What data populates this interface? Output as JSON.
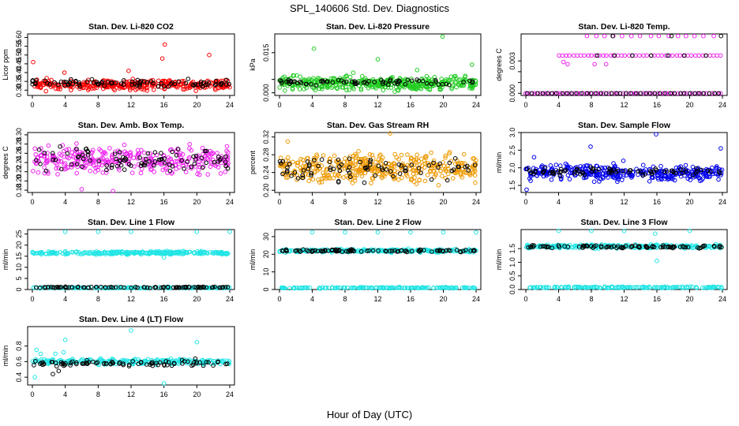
{
  "figure": {
    "title": "SPL_140606  Std. Dev. Diagnostics",
    "xlabel": "Hour of Day (UTC)"
  },
  "chart_data": [
    {
      "type": "scatter",
      "title": "Stan. Dev. Li-820 CO2",
      "ylabel": "Licor ppm",
      "xlim": [
        0,
        24
      ],
      "ylim": [
        0.27,
        0.62
      ],
      "xticks": [
        "0",
        "4",
        "8",
        "12",
        "16",
        "20",
        "24"
      ],
      "yticks": [
        {
          "v": 0.3,
          "t": "0.30"
        },
        {
          "v": 0.35,
          "t": "0.35"
        },
        {
          "v": 0.4,
          "t": "0.40"
        },
        {
          "v": 0.45,
          "t": "0.45"
        },
        {
          "v": 0.5,
          "t": "0.50"
        },
        {
          "v": 0.55,
          "t": "0.55"
        },
        {
          "v": 0.6,
          "t": "0.60"
        }
      ],
      "series": [
        {
          "color": "#ff0000",
          "kind": "band",
          "seed": 11,
          "n": 340,
          "center": 0.33,
          "spread": 0.04,
          "outliers": [
            [
              0.1,
              0.46
            ],
            [
              8.3,
              0.62
            ],
            [
              15.8,
              0.48
            ],
            [
              16.1,
              0.56
            ],
            [
              21.5,
              0.5
            ],
            [
              3.9,
              0.4
            ],
            [
              11.7,
              0.41
            ]
          ]
        },
        {
          "color": "#000000",
          "kind": "band",
          "seed": 12,
          "n": 90,
          "center": 0.34,
          "spread": 0.03,
          "outliers": []
        }
      ]
    },
    {
      "type": "scatter",
      "title": "Stan. Dev. Li-820 Pressure",
      "ylabel": "kPa",
      "xlim": [
        0,
        24
      ],
      "ylim": [
        -0.001,
        0.022
      ],
      "xticks": [
        "0",
        "4",
        "8",
        "12",
        "16",
        "20",
        "24"
      ],
      "yticks": [
        {
          "v": 0.0,
          "t": "0.000"
        },
        {
          "v": 0.005,
          "t": ""
        },
        {
          "v": 0.015,
          "t": "0.015"
        }
      ],
      "series": [
        {
          "color": "#22cc22",
          "kind": "band",
          "seed": 21,
          "n": 420,
          "center": 0.0035,
          "spread": 0.0035,
          "outliers": [
            [
              4.2,
              0.0165
            ],
            [
              12.0,
              0.0125
            ],
            [
              19.9,
              0.021
            ],
            [
              9.0,
              0.0075
            ],
            [
              16.8,
              0.0085
            ],
            [
              23.5,
              0.0105
            ],
            [
              0.6,
              0.006
            ]
          ]
        },
        {
          "color": "#000000",
          "kind": "band",
          "seed": 22,
          "n": 70,
          "center": 0.004,
          "spread": 0.0015,
          "outliers": []
        }
      ]
    },
    {
      "type": "scatter",
      "title": "Stan. Dev. Li-820 Temp.",
      "ylabel": "degrees C",
      "xlim": [
        0,
        24
      ],
      "ylim": [
        -0.0002,
        0.0055
      ],
      "xticks": [
        "0",
        "4",
        "8",
        "12",
        "16",
        "20",
        "24"
      ],
      "yticks": [
        {
          "v": 0.0,
          "t": "0.000"
        },
        {
          "v": 0.001,
          "t": ""
        },
        {
          "v": 0.002,
          "t": ""
        },
        {
          "v": 0.003,
          "t": "0.003"
        }
      ],
      "series": [
        {
          "color": "#ee22ee",
          "kind": "levels",
          "seed": 31,
          "rows": [
            {
              "y": 0.0,
              "from": 0,
              "to": 24,
              "step": 0.35
            },
            {
              "y": 0.0035,
              "from": 4,
              "to": 23.8,
              "step": 0.45
            },
            {
              "y": 0.0053,
              "from": 7.5,
              "to": 23.5,
              "step": 1.1
            }
          ],
          "outliers": [
            [
              8.4,
              0.0027
            ],
            [
              5.1,
              0.0027
            ],
            [
              4.6,
              0.0029
            ],
            [
              9.8,
              0.0027
            ]
          ]
        },
        {
          "color": "#000000",
          "kind": "levels",
          "seed": 32,
          "rows": [
            {
              "y": 0.0,
              "from": 0.2,
              "to": 23.8,
              "step": 0.6
            },
            {
              "y": 0.0035,
              "from": 8.6,
              "to": 23.8,
              "step": 2.2
            },
            {
              "y": 0.0053,
              "from": 11.2,
              "to": 23.2,
              "step": 6.0
            }
          ],
          "outliers": []
        }
      ]
    },
    {
      "type": "scatter",
      "title": "Stan. Dev. Amb. Box Temp.",
      "ylabel": "degrees C",
      "xlim": [
        0,
        24
      ],
      "ylim": [
        0.175,
        0.305
      ],
      "xticks": [
        "0",
        "4",
        "8",
        "12",
        "16",
        "20",
        "24"
      ],
      "yticks": [
        {
          "v": 0.18,
          "t": "0.18"
        },
        {
          "v": 0.2,
          "t": "0.20"
        },
        {
          "v": 0.22,
          "t": "0.22"
        },
        {
          "v": 0.24,
          "t": "0.24"
        },
        {
          "v": 0.26,
          "t": "0.26"
        },
        {
          "v": 0.28,
          "t": "0.28"
        },
        {
          "v": 0.3,
          "t": "0.30"
        }
      ],
      "series": [
        {
          "color": "#ee22ee",
          "kind": "band",
          "seed": 41,
          "n": 340,
          "center": 0.245,
          "spread": 0.04,
          "outliers": [
            [
              9.8,
              0.178
            ],
            [
              6.0,
              0.182
            ]
          ]
        },
        {
          "color": "#000000",
          "kind": "band",
          "seed": 42,
          "n": 90,
          "center": 0.245,
          "spread": 0.035,
          "outliers": []
        }
      ]
    },
    {
      "type": "scatter",
      "title": "Stan. Dev. Gas Stream RH",
      "ylabel": "percent",
      "xlim": [
        0,
        24
      ],
      "ylim": [
        0.195,
        0.33
      ],
      "xticks": [
        "0",
        "4",
        "8",
        "12",
        "16",
        "20",
        "24"
      ],
      "yticks": [
        {
          "v": 0.2,
          "t": "0.20"
        },
        {
          "v": 0.24,
          "t": "0.24"
        },
        {
          "v": 0.28,
          "t": "0.28"
        },
        {
          "v": 0.32,
          "t": "0.32"
        }
      ],
      "series": [
        {
          "color": "#ee9900",
          "kind": "band",
          "seed": 51,
          "n": 420,
          "center": 0.25,
          "spread": 0.045,
          "outliers": [
            [
              13.5,
              0.328
            ],
            [
              1.0,
              0.31
            ]
          ]
        },
        {
          "color": "#000000",
          "kind": "band",
          "seed": 52,
          "n": 80,
          "center": 0.25,
          "spread": 0.04,
          "outliers": []
        }
      ]
    },
    {
      "type": "scatter",
      "title": "Stan. Dev. Sample Flow",
      "ylabel": "ml/min",
      "xlim": [
        0,
        24
      ],
      "ylim": [
        1.3,
        3.0
      ],
      "xticks": [
        "0",
        "4",
        "8",
        "12",
        "16",
        "20",
        "24"
      ],
      "yticks": [
        {
          "v": 1.5,
          "t": "1.5"
        },
        {
          "v": 2.0,
          "t": "2.0"
        },
        {
          "v": 2.5,
          "t": "2.5"
        },
        {
          "v": 3.0,
          "t": "3.0"
        }
      ],
      "series": [
        {
          "color": "#0000ee",
          "kind": "band",
          "seed": 61,
          "n": 360,
          "center": 1.85,
          "spread": 0.3,
          "outliers": [
            [
              7.9,
              2.6
            ],
            [
              15.9,
              2.95
            ],
            [
              23.8,
              2.55
            ],
            [
              0.1,
              1.38
            ],
            [
              1.0,
              2.3
            ],
            [
              11.9,
              2.2
            ]
          ]
        },
        {
          "color": "#000000",
          "kind": "band",
          "seed": 62,
          "n": 80,
          "center": 1.9,
          "spread": 0.15,
          "outliers": []
        }
      ]
    },
    {
      "type": "scatter",
      "title": "Stan. Dev. Line 1 Flow",
      "ylabel": "ml/min",
      "xlim": [
        0,
        24
      ],
      "ylim": [
        0,
        27
      ],
      "xticks": [
        "0",
        "4",
        "8",
        "12",
        "16",
        "20",
        "24"
      ],
      "yticks": [
        {
          "v": 0,
          "t": "0"
        },
        {
          "v": 5,
          "t": "5"
        },
        {
          "v": 10,
          "t": "10"
        },
        {
          "v": 15,
          "t": "15"
        },
        {
          "v": 20,
          "t": "20"
        },
        {
          "v": 25,
          "t": "25"
        }
      ],
      "series": [
        {
          "color": "#22e5e5",
          "kind": "band",
          "seed": 71,
          "n": 260,
          "center": 16.5,
          "spread": 1.0,
          "outliers": [
            [
              4.0,
              26
            ],
            [
              8.0,
              26
            ],
            [
              12.0,
              26
            ],
            [
              16.0,
              14.5
            ],
            [
              20.0,
              26
            ],
            [
              24.0,
              26
            ]
          ]
        },
        {
          "color": "#22e5e5",
          "kind": "band",
          "seed": 73,
          "n": 160,
          "center": 0.8,
          "spread": 0.4,
          "outliers": []
        },
        {
          "color": "#000000",
          "kind": "band",
          "seed": 72,
          "n": 90,
          "center": 1.0,
          "spread": 0.4,
          "outliers": []
        }
      ]
    },
    {
      "type": "scatter",
      "title": "Stan. Dev. Line 2 Flow",
      "ylabel": "ml/min",
      "xlim": [
        0,
        24
      ],
      "ylim": [
        0,
        34
      ],
      "xticks": [
        "0",
        "4",
        "8",
        "12",
        "16",
        "20",
        "24"
      ],
      "yticks": [
        {
          "v": 0,
          "t": "0"
        },
        {
          "v": 10,
          "t": "10"
        },
        {
          "v": 20,
          "t": "20"
        },
        {
          "v": 30,
          "t": "30"
        }
      ],
      "series": [
        {
          "color": "#22e5e5",
          "kind": "band",
          "seed": 81,
          "n": 260,
          "center": 22,
          "spread": 1.4,
          "outliers": [
            [
              4.0,
              32.5
            ],
            [
              8.0,
              32.5
            ],
            [
              12.0,
              32.5
            ],
            [
              16.0,
              32.5
            ],
            [
              20.0,
              32.5
            ],
            [
              24.0,
              32.5
            ]
          ]
        },
        {
          "color": "#22e5e5",
          "kind": "band",
          "seed": 83,
          "n": 160,
          "center": 1.0,
          "spread": 0.5,
          "outliers": []
        },
        {
          "color": "#000000",
          "kind": "band",
          "seed": 82,
          "n": 90,
          "center": 22,
          "spread": 1.0,
          "outliers": []
        }
      ]
    },
    {
      "type": "scatter",
      "title": "Stan. Dev. Line 3 Flow",
      "ylabel": "ml/min",
      "xlim": [
        0,
        24
      ],
      "ylim": [
        0,
        2.2
      ],
      "xticks": [
        "0",
        "4",
        "8",
        "12",
        "16",
        "20",
        "24"
      ],
      "yticks": [
        {
          "v": 0.0,
          "t": "0.0"
        },
        {
          "v": 0.5,
          "t": "0.5"
        },
        {
          "v": 1.0,
          "t": "1.0"
        },
        {
          "v": 1.5,
          "t": "1.5"
        }
      ],
      "series": [
        {
          "color": "#22e5e5",
          "kind": "band",
          "seed": 91,
          "n": 260,
          "center": 1.58,
          "spread": 0.1,
          "outliers": [
            [
              4.0,
              2.15
            ],
            [
              8.0,
              2.15
            ],
            [
              12.0,
              2.15
            ],
            [
              16.0,
              1.05
            ],
            [
              20.0,
              2.15
            ],
            [
              15.8,
              2.05
            ]
          ]
        },
        {
          "color": "#22e5e5",
          "kind": "band",
          "seed": 93,
          "n": 160,
          "center": 0.08,
          "spread": 0.04,
          "outliers": []
        },
        {
          "color": "#000000",
          "kind": "band",
          "seed": 92,
          "n": 90,
          "center": 1.57,
          "spread": 0.08,
          "outliers": []
        }
      ]
    },
    {
      "type": "scatter",
      "title": "Stan. Dev. Line 4 (LT) Flow",
      "ylabel": "ml/min",
      "xlim": [
        0,
        24
      ],
      "ylim": [
        0.3,
        1.05
      ],
      "xticks": [
        "0",
        "4",
        "8",
        "12",
        "16",
        "20",
        "24"
      ],
      "yticks": [
        {
          "v": 0.4,
          "t": "0.4"
        },
        {
          "v": 0.6,
          "t": "0.6"
        },
        {
          "v": 0.8,
          "t": "0.8"
        }
      ],
      "series": [
        {
          "color": "#22e5e5",
          "kind": "band",
          "seed": 101,
          "n": 260,
          "center": 0.6,
          "spread": 0.05,
          "outliers": [
            [
              12.0,
              1.0
            ],
            [
              4.0,
              0.88
            ],
            [
              16.0,
              0.32
            ],
            [
              20.0,
              0.85
            ],
            [
              0.1,
              0.3
            ],
            [
              0.5,
              0.75
            ],
            [
              0.3,
              0.4
            ],
            [
              2.8,
              0.7
            ],
            [
              3.8,
              0.72
            ],
            [
              1.0,
              0.7
            ]
          ]
        },
        {
          "color": "#000000",
          "kind": "band",
          "seed": 102,
          "n": 90,
          "center": 0.58,
          "spread": 0.05,
          "outliers": [
            [
              2.5,
              0.44
            ],
            [
              3.2,
              0.48
            ],
            [
              19.8,
              0.64
            ]
          ]
        }
      ]
    }
  ]
}
